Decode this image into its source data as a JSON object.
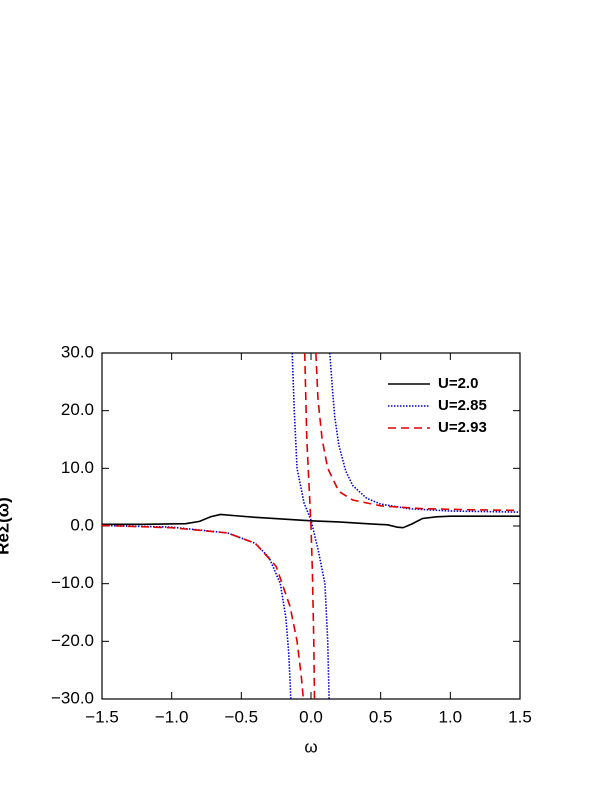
{
  "chart_data": {
    "type": "line",
    "x_label": "ω",
    "y_label": "ReΣ(ω)",
    "xlim": [
      -1.5,
      1.5
    ],
    "xticks": [
      {
        "value": -1.5,
        "label": "−1.5"
      },
      {
        "value": -1.0,
        "label": "−1.0"
      },
      {
        "value": -0.5,
        "label": "−0.5"
      },
      {
        "value": 0,
        "label": "0.0"
      },
      0.5,
      {
        "value": 1,
        "label": "1.0"
      },
      1.5
    ],
    "ylim": [
      -30,
      30
    ],
    "yticks": [
      {
        "value": -30,
        "label": "−30.0"
      },
      {
        "value": -20,
        "label": "−20.0"
      },
      {
        "value": -10,
        "label": "−10.0"
      },
      {
        "value": 0,
        "label": "0.0"
      },
      {
        "value": 10,
        "label": "10.0"
      },
      {
        "value": 20,
        "label": "20.0"
      },
      {
        "value": 30,
        "label": "30.0"
      }
    ],
    "legend": "upper right",
    "series": [
      {
        "name": "U=2.0",
        "color": "#000000",
        "dash": "solid",
        "x": [
          -1.5,
          -1.2,
          -0.9,
          -0.8,
          -0.72,
          -0.65,
          -0.55,
          -0.4,
          -0.2,
          0.0,
          0.2,
          0.4,
          0.55,
          0.62,
          0.66,
          0.72,
          0.8,
          0.9,
          1.0,
          1.2,
          1.5
        ],
        "values": [
          0.3,
          0.3,
          0.4,
          0.8,
          1.6,
          2.0,
          1.8,
          1.5,
          1.2,
          0.9,
          0.7,
          0.4,
          0.2,
          -0.2,
          -0.3,
          0.3,
          1.3,
          1.6,
          1.7,
          1.7,
          1.7
        ]
      },
      {
        "name": "U=2.85",
        "color": "#0000cc",
        "dash": "dotted",
        "x": [
          -1.5,
          -1.0,
          -0.6,
          -0.4,
          -0.3,
          -0.22,
          -0.18,
          -0.16,
          -0.15,
          -0.145,
          null,
          -0.135,
          -0.12,
          -0.1,
          -0.05,
          0,
          0.05,
          0.1,
          0.12,
          0.13,
          null,
          0.135,
          0.15,
          0.17,
          0.2,
          0.25,
          0.3,
          0.4,
          0.5,
          0.7,
          1.0,
          1.5
        ],
        "values": [
          0.1,
          -0.2,
          -1.2,
          -3,
          -5.5,
          -10,
          -16,
          -22,
          -27,
          -30,
          null,
          30,
          20,
          10,
          4,
          1,
          -4,
          -10,
          -20,
          -30,
          null,
          30,
          25,
          19,
          14,
          9.5,
          7,
          4.8,
          3.8,
          3,
          2.6,
          2.4
        ]
      },
      {
        "name": "U=2.93",
        "color": "#e00000",
        "dash": "dashed",
        "x": [
          -1.5,
          -1.0,
          -0.6,
          -0.4,
          -0.25,
          -0.15,
          -0.1,
          -0.07,
          -0.055,
          null,
          -0.045,
          -0.03,
          -0.01,
          0,
          0.01,
          0.02,
          0.025,
          null,
          0.035,
          0.05,
          0.08,
          0.12,
          0.2,
          0.3,
          0.5,
          0.8,
          1.2,
          1.5
        ],
        "values": [
          0.1,
          -0.3,
          -1.2,
          -3,
          -7,
          -14,
          -20,
          -26,
          -30,
          null,
          30,
          15,
          5,
          0,
          -8,
          -20,
          -30,
          null,
          30,
          22,
          15,
          10,
          6,
          4.5,
          3.5,
          3,
          2.8,
          2.7
        ]
      }
    ]
  }
}
